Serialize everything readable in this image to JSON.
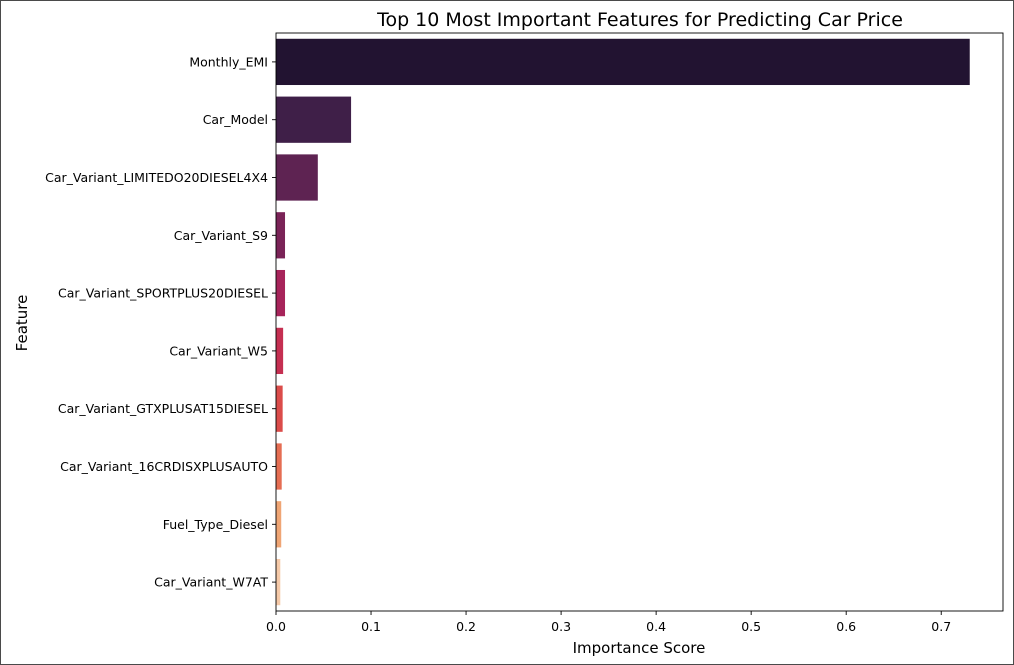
{
  "chart_data": {
    "type": "bar",
    "orientation": "horizontal",
    "title": "Top 10 Most Important Features for Predicting Car Price",
    "xlabel": "Importance Score",
    "ylabel": "Feature",
    "xlim": [
      0,
      0.765
    ],
    "xticks": [
      "0.0",
      "0.1",
      "0.2",
      "0.3",
      "0.4",
      "0.5",
      "0.6",
      "0.7"
    ],
    "grid": false,
    "categories": [
      "Monthly_EMI",
      "Car_Model",
      "Car_Variant_LIMITEDO20DIESEL4X4",
      "Car_Variant_S9",
      "Car_Variant_SPORTPLUS20DIESEL",
      "Car_Variant_W5",
      "Car_Variant_GTXPLUSAT15DIESEL",
      "Car_Variant_16CRDISXPLUSAUTO",
      "Fuel_Type_Diesel",
      "Car_Variant_W7AT"
    ],
    "values": [
      0.73,
      0.079,
      0.044,
      0.0095,
      0.0095,
      0.0075,
      0.007,
      0.006,
      0.0055,
      0.0045
    ],
    "colors": [
      "#221331",
      "#3f1f48",
      "#5e2352",
      "#7a2357",
      "#a7245a",
      "#c52f51",
      "#db4c4a",
      "#e56d52",
      "#efa574",
      "#f5c9a8"
    ]
  }
}
